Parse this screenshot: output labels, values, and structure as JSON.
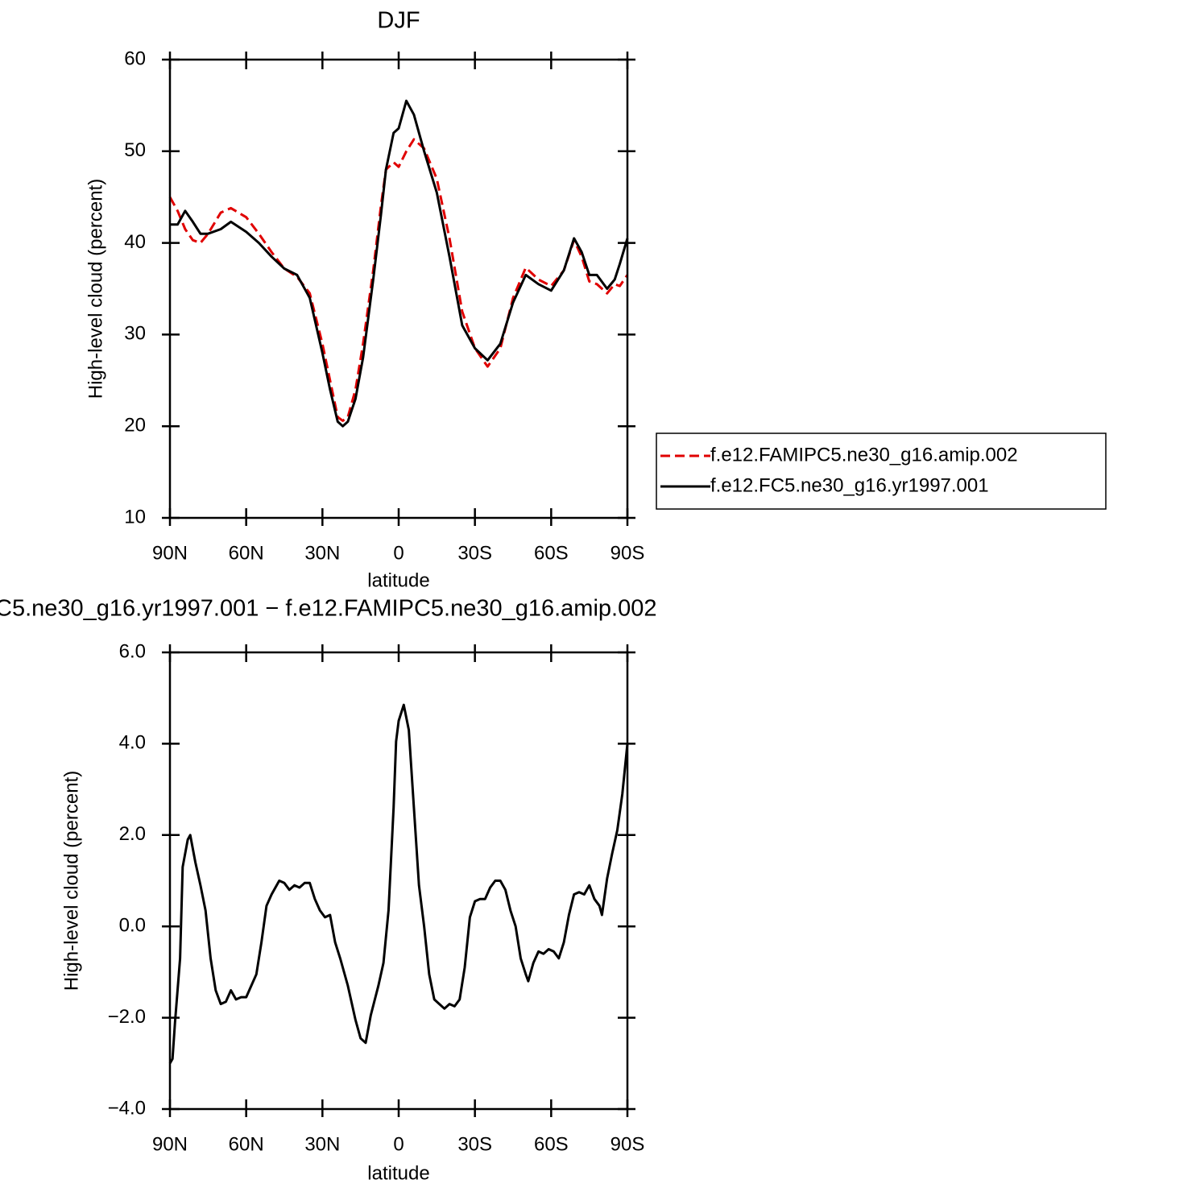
{
  "chart_data": [
    {
      "type": "line",
      "title": "DJF",
      "xlabel": "latitude",
      "ylabel": "High-level cloud (percent)",
      "xlim": [
        90,
        -90
      ],
      "ylim": [
        10,
        60
      ],
      "xticks": [
        {
          "value": 90,
          "label": "90N"
        },
        {
          "value": 60,
          "label": "60N"
        },
        {
          "value": 30,
          "label": "30N"
        },
        0,
        {
          "value": -30,
          "label": "30S"
        },
        {
          "value": -60,
          "label": "60S"
        },
        {
          "value": -90,
          "label": "90S"
        }
      ],
      "yticks": [
        10,
        20,
        30,
        40,
        50,
        60
      ],
      "x": [
        90,
        87,
        84,
        81,
        78,
        75,
        70,
        66,
        60,
        55,
        50,
        45,
        40,
        35,
        30,
        27,
        24,
        22,
        20,
        17,
        14,
        10,
        7,
        5,
        2,
        0,
        -3,
        -6,
        -10,
        -15,
        -20,
        -25,
        -30,
        -35,
        -40,
        -45,
        -50,
        -55,
        -60,
        -65,
        -69,
        -72,
        -75,
        -78,
        -82,
        -85,
        -87,
        -90
      ],
      "series": [
        {
          "name": "f.e12.FAMIPC5.ne30_g16.amip.002",
          "color": "#e00000",
          "line_style": "dashed",
          "values": [
            45,
            43.5,
            41.5,
            40.3,
            40,
            41,
            43.3,
            43.8,
            42.8,
            41,
            39,
            37.2,
            36.3,
            34.5,
            29,
            25,
            21,
            20.6,
            21,
            24,
            29,
            37,
            44,
            48,
            48.8,
            48.3,
            50,
            51.3,
            50.3,
            47,
            40.5,
            32.5,
            28.5,
            26.5,
            28.5,
            34,
            37.3,
            36,
            35.3,
            37,
            40.3,
            38.5,
            35.8,
            35.5,
            34.5,
            35.5,
            35.3,
            36.5
          ]
        },
        {
          "name": "f.e12.FC5.ne30_g16.yr1997.001",
          "color": "#000000",
          "line_style": "solid",
          "values": [
            42,
            42,
            43.5,
            42.3,
            41,
            41,
            41.5,
            42.3,
            41.2,
            40,
            38.5,
            37.2,
            36.5,
            34,
            28,
            24,
            20.5,
            20,
            20.5,
            23,
            27.5,
            36,
            43,
            48,
            52,
            52.5,
            55.5,
            54,
            50,
            45.5,
            38.5,
            31,
            28.5,
            27.2,
            29,
            33.5,
            36.5,
            35.5,
            34.8,
            37,
            40.5,
            39,
            36.5,
            36.5,
            35,
            36,
            37.7,
            40.5
          ]
        }
      ]
    },
    {
      "type": "line",
      "title": "C5.ne30_g16.yr1997.001 − f.e12.FAMIPC5.ne30_g16.amip.002",
      "xlabel": "latitude",
      "ylabel": "High-level cloud (percent)",
      "xlim": [
        90,
        -90
      ],
      "ylim": [
        -4,
        6
      ],
      "xticks": [
        {
          "value": 90,
          "label": "90N"
        },
        {
          "value": 60,
          "label": "60N"
        },
        {
          "value": 30,
          "label": "30N"
        },
        0,
        {
          "value": -30,
          "label": "30S"
        },
        {
          "value": -60,
          "label": "60S"
        },
        {
          "value": -90,
          "label": "90S"
        }
      ],
      "yticks": [
        {
          "value": -4,
          "label": "−4.0"
        },
        {
          "value": -2,
          "label": "−2.0"
        },
        {
          "value": 0,
          "label": "0.0"
        },
        {
          "value": 2,
          "label": "2.0"
        },
        {
          "value": 4,
          "label": "4.0"
        },
        {
          "value": 6,
          "label": "6.0"
        }
      ],
      "x": [
        90,
        89,
        88,
        86,
        85,
        83,
        82,
        80,
        78,
        76,
        74,
        72,
        70,
        68,
        66,
        64,
        62,
        60,
        58,
        56,
        54,
        52,
        50,
        47,
        45,
        43,
        41,
        39,
        37,
        35,
        33,
        31,
        29,
        27,
        25,
        23,
        20,
        17,
        15,
        13,
        11,
        8,
        6,
        4,
        2,
        1,
        0,
        -2,
        -4,
        -6,
        -8,
        -10,
        -12,
        -14,
        -16,
        -18,
        -20,
        -22,
        -24,
        -26,
        -28,
        -30,
        -32,
        -34,
        -36,
        -38,
        -40,
        -42,
        -44,
        -46,
        -48,
        -50,
        -51,
        -53,
        -55,
        -57,
        -59,
        -61,
        -63,
        -65,
        -67,
        -69,
        -71,
        -73,
        -75,
        -77,
        -79,
        -80,
        -82,
        -84,
        -86,
        -88,
        -90
      ],
      "series": [
        {
          "name": null,
          "color": "#000000",
          "line_style": "solid",
          "values": [
            -3.0,
            -2.9,
            -2.1,
            -0.7,
            1.3,
            1.9,
            2.0,
            1.4,
            0.9,
            0.35,
            -0.7,
            -1.4,
            -1.7,
            -1.65,
            -1.4,
            -1.6,
            -1.55,
            -1.55,
            -1.3,
            -1.05,
            -0.35,
            0.45,
            0.7,
            1.0,
            0.95,
            0.8,
            0.9,
            0.85,
            0.95,
            0.95,
            0.6,
            0.35,
            0.2,
            0.25,
            -0.35,
            -0.7,
            -1.3,
            -2.05,
            -2.45,
            -2.55,
            -1.95,
            -1.3,
            -0.8,
            0.35,
            2.6,
            4.05,
            4.5,
            4.85,
            4.3,
            2.6,
            0.9,
            0.0,
            -1.05,
            -1.6,
            -1.7,
            -1.8,
            -1.7,
            -1.75,
            -1.6,
            -0.9,
            0.2,
            0.55,
            0.6,
            0.6,
            0.85,
            1.0,
            1.0,
            0.8,
            0.35,
            0.0,
            -0.7,
            -1.05,
            -1.2,
            -0.8,
            -0.55,
            -0.6,
            -0.5,
            -0.55,
            -0.7,
            -0.35,
            0.25,
            0.7,
            0.75,
            0.7,
            0.9,
            0.6,
            0.45,
            0.25,
            1.05,
            1.6,
            2.1,
            2.9,
            4.0
          ]
        }
      ]
    }
  ]
}
